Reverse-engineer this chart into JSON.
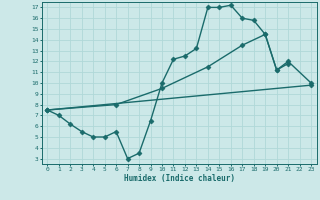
{
  "xlabel": "Humidex (Indice chaleur)",
  "bg_color": "#cce8e8",
  "grid_color": "#b0d8d8",
  "line_color": "#1a6b6b",
  "xlim": [
    -0.5,
    23.5
  ],
  "ylim": [
    2.5,
    17.5
  ],
  "xticks": [
    0,
    1,
    2,
    3,
    4,
    5,
    6,
    7,
    8,
    9,
    10,
    11,
    12,
    13,
    14,
    15,
    16,
    17,
    18,
    19,
    20,
    21,
    22,
    23
  ],
  "yticks": [
    3,
    4,
    5,
    6,
    7,
    8,
    9,
    10,
    11,
    12,
    13,
    14,
    15,
    16,
    17
  ],
  "series1_x": [
    0,
    1,
    2,
    3,
    4,
    5,
    6,
    7,
    8,
    9,
    10,
    11,
    12,
    13,
    14,
    15,
    16,
    17,
    18,
    19,
    20,
    21
  ],
  "series1_y": [
    7.5,
    7.0,
    6.2,
    5.5,
    5.0,
    5.0,
    5.5,
    3.0,
    3.5,
    6.5,
    10.0,
    12.2,
    12.5,
    13.2,
    17.0,
    17.0,
    17.2,
    16.0,
    15.8,
    14.5,
    11.2,
    11.8
  ],
  "series2_x": [
    0,
    6,
    10,
    14,
    17,
    19,
    20,
    21,
    23
  ],
  "series2_y": [
    7.5,
    8.0,
    9.5,
    11.5,
    13.5,
    14.5,
    11.2,
    12.0,
    10.0
  ],
  "series3_x": [
    0,
    23
  ],
  "series3_y": [
    7.5,
    9.8
  ],
  "marker": "D",
  "markersize": 2.5,
  "linewidth": 1.0
}
